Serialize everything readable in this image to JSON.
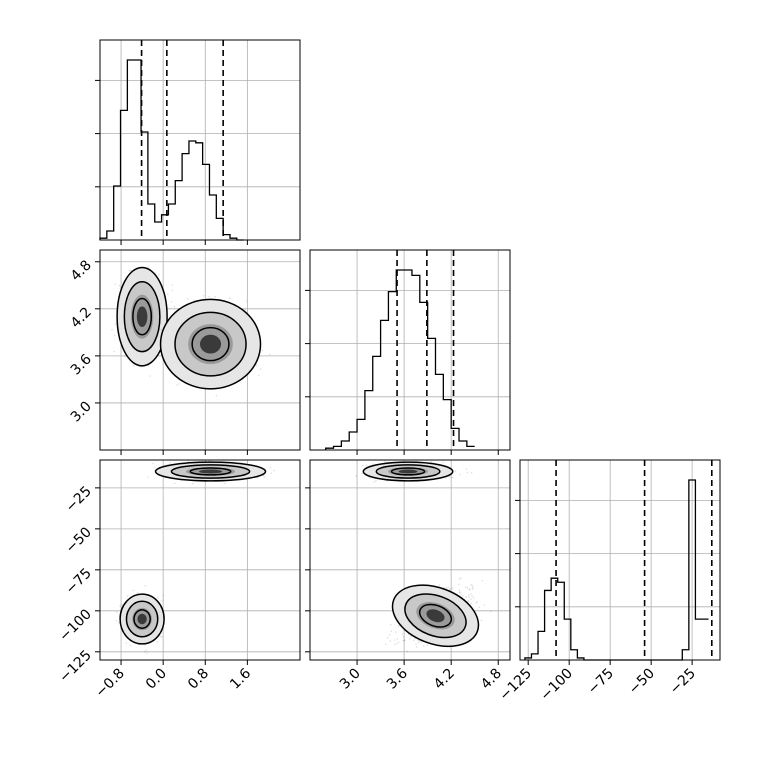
{
  "chart_data": {
    "type": "corner",
    "title": "",
    "parameters": [
      {
        "label": "",
        "range": [
          -1.2,
          2.6
        ],
        "ticks": [
          -0.8,
          0.0,
          0.8,
          1.6
        ],
        "tick_labels": [
          "−0.8",
          "0.0",
          "0.8",
          "1.6"
        ]
      },
      {
        "label": "",
        "range": [
          2.4,
          4.95
        ],
        "ticks": [
          3.0,
          3.6,
          4.2,
          4.8
        ],
        "tick_labels": [
          "3.0",
          "3.6",
          "4.2",
          "4.8"
        ]
      },
      {
        "label": "",
        "range": [
          -130,
          -8
        ],
        "ticks": [
          -125,
          -100,
          -75,
          -50,
          -25
        ],
        "tick_labels": [
          "−125",
          "−100",
          "−75",
          "−50",
          "−25"
        ]
      }
    ],
    "histograms": [
      {
        "parameter": 0,
        "bin_start": -1.2,
        "bin_width": 0.13,
        "counts": [
          1,
          5,
          30,
          72,
          100,
          100,
          60,
          20,
          10,
          14,
          20,
          33,
          48,
          55,
          54,
          42,
          25,
          12,
          3,
          1,
          0
        ],
        "quantiles": [
          -0.41,
          0.07,
          1.14
        ]
      },
      {
        "parameter": 1,
        "bin_start": 2.6,
        "bin_width": 0.1,
        "counts": [
          1,
          2,
          5,
          10,
          17,
          33,
          52,
          72,
          88,
          100,
          100,
          97,
          82,
          62,
          42,
          28,
          12,
          5,
          2
        ],
        "quantiles": [
          3.51,
          3.89,
          4.23
        ]
      },
      {
        "parameter": 2,
        "bin_start": -127,
        "bin_width": 4,
        "counts": [
          1,
          3,
          14,
          34,
          40,
          38,
          20,
          5,
          1,
          0,
          0,
          0,
          0,
          0,
          0,
          0,
          0,
          0,
          0,
          0,
          0,
          0,
          0,
          0,
          5,
          88,
          20,
          20
        ],
        "quantiles": [
          -108,
          -54,
          -13
        ]
      }
    ],
    "density_panels": [
      {
        "x": 0,
        "y": 1,
        "modes": [
          {
            "center": [
              -0.4,
              4.1
            ],
            "spread": [
              0.25,
              0.33
            ]
          },
          {
            "center": [
              0.9,
              3.75
            ],
            "spread": [
              0.5,
              0.3
            ]
          }
        ]
      },
      {
        "x": 0,
        "y": 2,
        "modes": [
          {
            "center": [
              0.9,
              -15
            ],
            "spread": [
              0.55,
              3
            ]
          },
          {
            "center": [
              -0.4,
              -105
            ],
            "spread": [
              0.22,
              8
            ]
          }
        ]
      },
      {
        "x": 1,
        "y": 2,
        "modes": [
          {
            "center": [
              3.65,
              -15
            ],
            "spread": [
              0.3,
              3
            ]
          },
          {
            "center": [
              4.0,
              -103
            ],
            "spread": [
              0.3,
              9
            ],
            "tilt": -0.6
          }
        ]
      }
    ],
    "grid": true,
    "legend": "none"
  }
}
